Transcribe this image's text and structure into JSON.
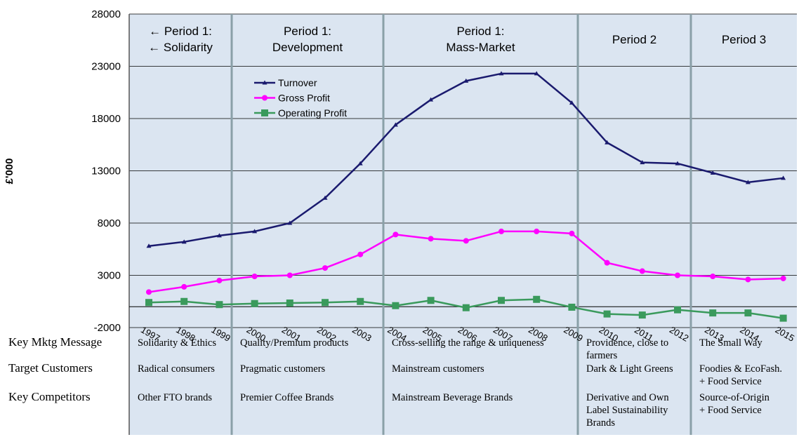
{
  "chart_data": {
    "type": "line",
    "ylabel": "£'000",
    "ylim": [
      -2000,
      28000
    ],
    "yticks": [
      -2000,
      3000,
      8000,
      13000,
      18000,
      23000,
      28000
    ],
    "x": [
      "1997",
      "1998",
      "1999",
      "2000",
      "2001",
      "2002",
      "2003",
      "2004",
      "2005",
      "2006",
      "2007",
      "2008",
      "2009",
      "2010",
      "2011",
      "2012",
      "2013",
      "2014",
      "2015"
    ],
    "grid": "horizontal",
    "legend_position": "top-center",
    "series": [
      {
        "name": "Turnover",
        "color": "#1a1a6e",
        "marker": "triangle",
        "values": [
          5800,
          6200,
          6800,
          7200,
          8000,
          10400,
          13700,
          17400,
          19800,
          21600,
          22300,
          22300,
          19500,
          15700,
          13800,
          13700,
          12800,
          11900,
          12300
        ]
      },
      {
        "name": "Gross Profit",
        "color": "#ff00ff",
        "marker": "circle",
        "values": [
          1400,
          1900,
          2500,
          2900,
          3000,
          3700,
          5000,
          6900,
          6500,
          6300,
          7200,
          7200,
          7000,
          4200,
          3400,
          3000,
          2900,
          2600,
          2700
        ]
      },
      {
        "name": "Operating Profit",
        "color": "#3a9a5c",
        "marker": "square",
        "values": [
          400,
          500,
          200,
          300,
          350,
          400,
          500,
          100,
          600,
          -100,
          600,
          700,
          -50,
          -700,
          -800,
          -300,
          -600,
          -600,
          -1100
        ]
      }
    ],
    "periods": [
      {
        "lines": [
          "← Period 1:",
          "← Solidarity"
        ],
        "start": "1997",
        "end": "1999"
      },
      {
        "lines": [
          "Period 1:",
          "Development"
        ],
        "start": "2000",
        "end": "2003"
      },
      {
        "lines": [
          "Period 1:",
          "Mass-Market"
        ],
        "start": "2004",
        "end": "2009"
      },
      {
        "lines": [
          "Period 2"
        ],
        "start": "2010",
        "end": "2012"
      },
      {
        "lines": [
          "Period 3"
        ],
        "start": "2013",
        "end": "2015"
      }
    ],
    "table": {
      "row_labels": [
        "Key Mktg Message",
        "Target Customers",
        "Key Competitors"
      ],
      "cells": [
        {
          "row": 0,
          "period": 0,
          "lines": [
            "Solidarity & Ethics"
          ]
        },
        {
          "row": 0,
          "period": 1,
          "lines": [
            "Quality/Premium products"
          ]
        },
        {
          "row": 0,
          "period": 2,
          "lines": [
            "Cross-selling the range & uniqueness"
          ]
        },
        {
          "row": 0,
          "period": 3,
          "lines": [
            "Providence, close to",
            "farmers"
          ]
        },
        {
          "row": 0,
          "period": 4,
          "lines": [
            "The Small Way"
          ]
        },
        {
          "row": 1,
          "period": 0,
          "lines": [
            "Radical consumers"
          ]
        },
        {
          "row": 1,
          "period": 1,
          "lines": [
            "Pragmatic customers"
          ]
        },
        {
          "row": 1,
          "period": 2,
          "lines": [
            "Mainstream customers"
          ]
        },
        {
          "row": 1,
          "period": 3,
          "lines": [
            "Dark & Light Greens"
          ]
        },
        {
          "row": 1,
          "period": 4,
          "lines": [
            "Foodies & EcoFash.",
            "+ Food Service"
          ]
        },
        {
          "row": 2,
          "period": 0,
          "lines": [
            "Other FTO brands"
          ]
        },
        {
          "row": 2,
          "period": 1,
          "lines": [
            "Premier Coffee Brands"
          ]
        },
        {
          "row": 2,
          "period": 2,
          "lines": [
            "Mainstream Beverage Brands"
          ]
        },
        {
          "row": 2,
          "period": 3,
          "lines": [
            "Derivative and Own",
            "Label Sustainability",
            "Brands"
          ]
        },
        {
          "row": 2,
          "period": 4,
          "lines": [
            "Source-of-Origin",
            "+ Food Service"
          ]
        }
      ]
    }
  }
}
